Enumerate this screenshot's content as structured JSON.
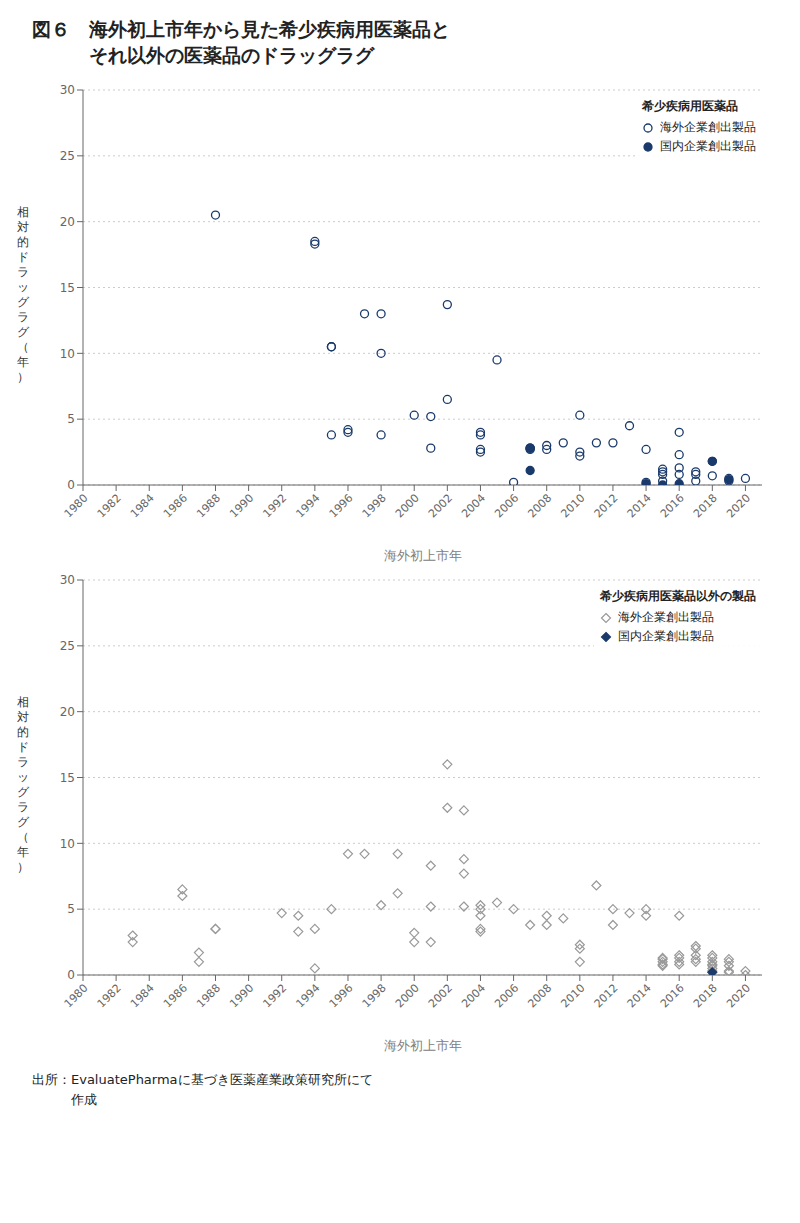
{
  "title": "図６　海外初上市年から見た希少疾病用医薬品と\n　　　それ以外の医薬品のドラッグラグ",
  "annotations": [
    "出所：EvaluatePharmaに基づき医薬産業政策研究所にて\n　　　作成"
  ],
  "chart_data": [
    {
      "type": "scatter",
      "subtitle": "希少疾病用医薬品",
      "xlabel": "海外初上市年",
      "ylabel": "相\n対\n的\nド\nラ\nッ\nグ\nラ\nグ\n（\n年\n）",
      "xlim": [
        1980,
        2021
      ],
      "ylim": [
        0,
        30
      ],
      "xticks": [
        1980,
        1982,
        1984,
        1986,
        1988,
        1990,
        1992,
        1994,
        1996,
        1998,
        2000,
        2002,
        2004,
        2006,
        2008,
        2010,
        2012,
        2014,
        2016,
        2018,
        2020
      ],
      "yticks": [
        0,
        5,
        10,
        15,
        20,
        25,
        30
      ],
      "grid": true,
      "legend": "upper right",
      "series": [
        {
          "name": "海外企業創出製品",
          "color": "#1a3a6b",
          "marker": "circle-open",
          "x": [
            1988,
            1994,
            1994,
            1995,
            1995,
            1995,
            1996,
            1996,
            1997,
            1998,
            1998,
            1998,
            2000,
            2001,
            2001,
            2002,
            2002,
            2004,
            2004,
            2004,
            2004,
            2005,
            2006,
            2007,
            2007,
            2007,
            2008,
            2008,
            2009,
            2010,
            2010,
            2010,
            2011,
            2012,
            2013,
            2014,
            2014,
            2015,
            2015,
            2015,
            2015,
            2016,
            2016,
            2016,
            2016,
            2017,
            2017,
            2017,
            2018,
            2018,
            2019,
            2019,
            2020
          ],
          "values": [
            20.5,
            18.5,
            18.3,
            10.5,
            10.5,
            3.8,
            4.2,
            4.0,
            13.0,
            13.0,
            10.0,
            3.8,
            5.3,
            5.2,
            2.8,
            13.7,
            6.5,
            4.0,
            3.8,
            2.7,
            2.5,
            9.5,
            0.2,
            2.8,
            2.8,
            2.7,
            3.0,
            2.7,
            3.2,
            5.3,
            2.5,
            2.2,
            3.2,
            3.2,
            4.5,
            2.7,
            0.2,
            1.2,
            1.0,
            0.8,
            0.3,
            4.0,
            2.3,
            1.3,
            0.8,
            1.0,
            0.8,
            0.3,
            1.8,
            0.7,
            0.5,
            0.3,
            0.5
          ]
        },
        {
          "name": "国内企業創出製品",
          "color": "#1a3a6b",
          "marker": "circle",
          "x": [
            2007,
            2007,
            2014,
            2015,
            2016,
            2018,
            2019
          ],
          "values": [
            1.1,
            2.8,
            0.1,
            0.0,
            0.1,
            1.8,
            0.4
          ]
        }
      ]
    },
    {
      "type": "scatter",
      "subtitle": "希少疾病用医薬品以外の製品",
      "xlabel": "海外初上市年",
      "ylabel": "相\n対\n的\nド\nラ\nッ\nグ\nラ\nグ\n（\n年\n）",
      "xlim": [
        1980,
        2021
      ],
      "ylim": [
        0,
        30
      ],
      "xticks": [
        1980,
        1982,
        1984,
        1986,
        1988,
        1990,
        1992,
        1994,
        1996,
        1998,
        2000,
        2002,
        2004,
        2006,
        2008,
        2010,
        2012,
        2014,
        2016,
        2018,
        2020
      ],
      "yticks": [
        0,
        5,
        10,
        15,
        20,
        25,
        30
      ],
      "grid": true,
      "legend": "upper right",
      "series": [
        {
          "name": "海外企業創出製品",
          "color": "#999999",
          "marker": "diamond-open",
          "x": [
            1983,
            1983,
            1986,
            1986,
            1987,
            1987,
            1988,
            1988,
            1992,
            1993,
            1993,
            1994,
            1994,
            1995,
            1996,
            1997,
            1998,
            1999,
            1999,
            2000,
            2000,
            2001,
            2001,
            2001,
            2002,
            2002,
            2003,
            2003,
            2003,
            2003,
            2004,
            2004,
            2004,
            2004,
            2004,
            2005,
            2006,
            2007,
            2008,
            2008,
            2009,
            2010,
            2010,
            2010,
            2011,
            2012,
            2012,
            2013,
            2014,
            2014,
            2015,
            2015,
            2015,
            2015,
            2015,
            2016,
            2016,
            2016,
            2016,
            2016,
            2017,
            2017,
            2017,
            2017,
            2017,
            2018,
            2018,
            2018,
            2018,
            2018,
            2018,
            2018,
            2019,
            2019,
            2019,
            2019,
            2019,
            2020,
            2020
          ],
          "values": [
            3.0,
            2.5,
            6.5,
            6.0,
            1.7,
            1.0,
            3.5,
            3.5,
            4.7,
            4.5,
            3.3,
            3.5,
            0.5,
            5.0,
            9.2,
            9.2,
            5.3,
            9.2,
            6.2,
            3.2,
            2.5,
            8.3,
            5.2,
            2.5,
            16.0,
            12.7,
            12.5,
            8.8,
            7.7,
            5.2,
            5.3,
            5.0,
            4.5,
            3.5,
            3.3,
            5.5,
            5.0,
            3.8,
            4.5,
            3.8,
            4.3,
            2.3,
            2.0,
            1.0,
            6.8,
            5.0,
            3.8,
            4.7,
            5.0,
            4.5,
            1.3,
            1.2,
            1.0,
            0.8,
            0.7,
            4.5,
            1.5,
            1.3,
            1.0,
            0.8,
            2.2,
            2.0,
            1.5,
            1.2,
            1.0,
            1.5,
            1.3,
            1.0,
            0.8,
            0.7,
            0.5,
            0.3,
            1.2,
            1.0,
            0.7,
            0.3,
            0.2,
            0.3,
            0.0
          ]
        },
        {
          "name": "国内企業創出製品",
          "color": "#1a3a6b",
          "marker": "diamond",
          "x": [
            2018
          ],
          "values": [
            0.2
          ]
        }
      ]
    }
  ]
}
